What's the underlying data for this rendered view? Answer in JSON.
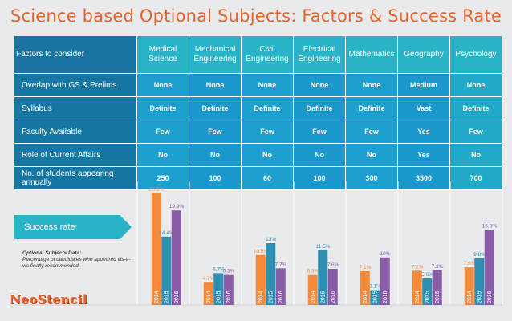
{
  "title": "Science based Optional Subjects: Factors & Success Rate",
  "table": {
    "corner": "Factors to consider",
    "subjects": [
      "Medical Science",
      "Mechanical Engineering",
      "Civil Engineering",
      "Electrical Engineering",
      "Mathematics",
      "Geography",
      "Psychology"
    ],
    "rows": [
      {
        "factor": "Overlap with GS & Prelims",
        "values": [
          "None",
          "None",
          "None",
          "None",
          "None",
          "Medium",
          "None"
        ]
      },
      {
        "factor": "Syllabus",
        "values": [
          "Definite",
          "Definite",
          "Definite",
          "Definite",
          "Definite",
          "Vast",
          "Definite"
        ]
      },
      {
        "factor": "Faculty Available",
        "values": [
          "Few",
          "Few",
          "Few",
          "Few",
          "Few",
          "Yes",
          "Few"
        ]
      },
      {
        "factor": "Role of Current Affairs",
        "values": [
          "No",
          "No",
          "No",
          "No",
          "No",
          "Yes",
          "No"
        ]
      },
      {
        "factor": "No. of students appearing annually",
        "values": [
          "250",
          "100",
          "60",
          "100",
          "300",
          "3500",
          "700"
        ]
      }
    ]
  },
  "success_label": "Success rate",
  "success_asterisk": "*",
  "note": {
    "title": "Optional Subjects Data:",
    "body": "Percentage of candidates who appeared vis-a-vis finally recommended."
  },
  "logo": "NeoStencil",
  "colors": {
    "y2014": "#f58a3b",
    "y2015": "#2f8fb3",
    "y2016": "#8a5ca8"
  },
  "chart_data": {
    "type": "bar",
    "title": "Success rate",
    "categories": [
      "Medical Science",
      "Mechanical Engineering",
      "Civil Engineering",
      "Electrical Engineering",
      "Mathematics",
      "Geography",
      "Psychology"
    ],
    "series": [
      {
        "name": "2014",
        "values": [
          23.6,
          4.7,
          10.5,
          6.3,
          7.1,
          7.2,
          7.9
        ],
        "labels": [
          "23.6%",
          "4.7%",
          "10.5%",
          "6.3%",
          "7.1%",
          "7.2%",
          "7.9%"
        ]
      },
      {
        "name": "2015",
        "values": [
          14.4,
          6.7,
          13,
          11.5,
          3.1,
          5.6,
          9.8
        ],
        "labels": [
          "14.4%",
          "6.7%",
          "13%",
          "11.5%",
          "3.1%",
          "5.6%",
          "9.8%"
        ]
      },
      {
        "name": "2016",
        "values": [
          19.9,
          6.3,
          7.7,
          7.6,
          10,
          7.3,
          15.8
        ],
        "labels": [
          "19.9%",
          "6.3%",
          "7.7%",
          "7.6%",
          "10%",
          "7.3%",
          "15.8%"
        ]
      }
    ],
    "xlabel": "",
    "ylabel": "",
    "ylim": [
      0,
      25
    ],
    "legend": "none"
  }
}
